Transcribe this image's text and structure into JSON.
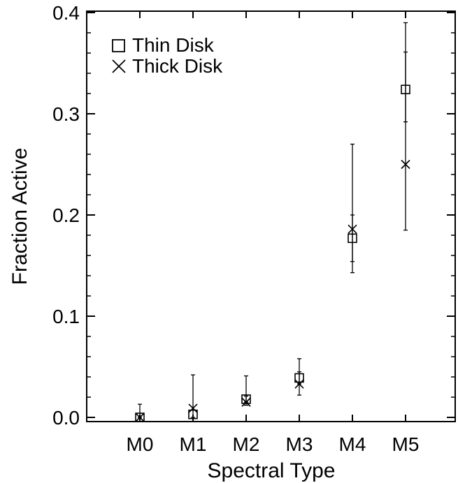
{
  "chart_data": {
    "type": "scatter",
    "title": "",
    "xlabel": "Spectral Type",
    "ylabel": "Fraction Active",
    "categories": [
      "M0",
      "M1",
      "M2",
      "M3",
      "M4",
      "M5"
    ],
    "ylim": [
      0.0,
      0.4
    ],
    "yticks": [
      "0.0",
      "0.1",
      "0.2",
      "0.3",
      "0.4"
    ],
    "grid": false,
    "legend_position": "top-left",
    "series": [
      {
        "name": "Thin Disk",
        "marker": "square",
        "values": [
          0.0,
          0.003,
          0.018,
          0.039,
          0.177,
          0.324
        ],
        "err_low": [
          0.0,
          0.0,
          0.015,
          0.033,
          0.143,
          0.292
        ],
        "err_high": [
          0.0,
          0.0,
          0.021,
          0.045,
          0.2,
          0.361
        ]
      },
      {
        "name": "Thick Disk",
        "marker": "x",
        "values": [
          0.0,
          0.009,
          0.015,
          0.033,
          0.186,
          0.25
        ],
        "err_low": [
          0.0,
          0.0,
          0.012,
          0.022,
          0.154,
          0.185
        ],
        "err_high": [
          0.013,
          0.042,
          0.041,
          0.058,
          0.27,
          0.39
        ]
      }
    ],
    "color": "#000000"
  }
}
